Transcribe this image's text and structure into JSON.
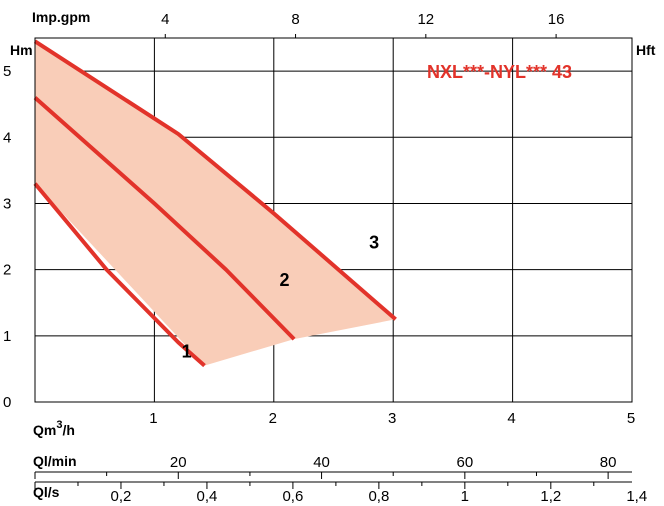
{
  "chart_data": {
    "type": "line",
    "title": "NXL***-NYL*** 43",
    "top_axis_label": "Imp.gpm",
    "left_axis_label": "Hm",
    "right_axis_label": "Hft",
    "x_label_base": "Qm",
    "x_label_sup": "3",
    "x_label_tail": "/h",
    "x2_label": "Ql/min",
    "x3_label": "Ql/s",
    "xlim": [
      0,
      5
    ],
    "ylim": [
      0,
      5.5
    ],
    "x_ticks": [
      "1",
      "2",
      "3",
      "4",
      "5"
    ],
    "y_ticks": [
      "0",
      "1",
      "2",
      "3",
      "4",
      "5"
    ],
    "top_ticks": [
      "4",
      "8",
      "12",
      "16"
    ],
    "lmin_ticks": [
      "20",
      "40",
      "60",
      "80"
    ],
    "ls_ticks": [
      "0,2",
      "0,4",
      "0,6",
      "0,8",
      "1",
      "1,2",
      "1,4"
    ],
    "grid": true,
    "colors": {
      "curve": "#e2332a",
      "fill": "#f9cdb8",
      "title": "#e2332a"
    },
    "series": [
      {
        "name": "1",
        "x": [
          0,
          0.6,
          1.2,
          1.42
        ],
        "y": [
          3.3,
          2.0,
          0.9,
          0.55
        ]
      },
      {
        "name": "2",
        "x": [
          0,
          1.0,
          1.6,
          2.17
        ],
        "y": [
          4.6,
          3.0,
          2.0,
          0.95
        ]
      },
      {
        "name": "3",
        "x": [
          0,
          1.2,
          2.0,
          3.02
        ],
        "y": [
          5.45,
          4.05,
          2.85,
          1.25
        ]
      }
    ],
    "operating_area": {
      "x": [
        0,
        1.2,
        2.0,
        3.02,
        2.17,
        1.42,
        0
      ],
      "y": [
        5.45,
        4.05,
        2.85,
        1.25,
        0.95,
        0.55,
        3.3
      ]
    }
  }
}
